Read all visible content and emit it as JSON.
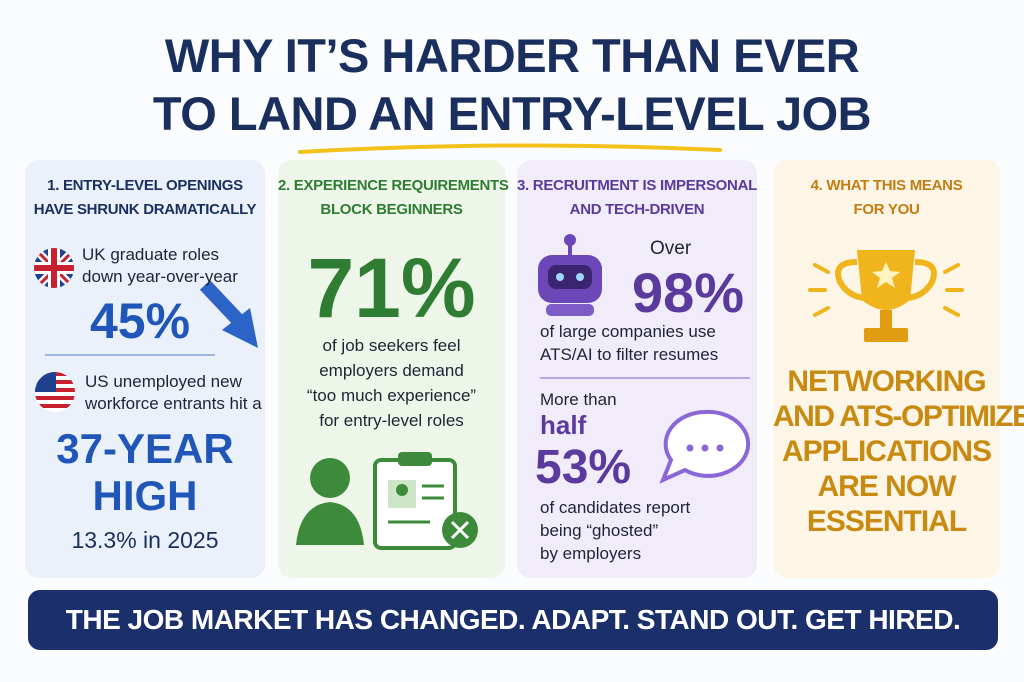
{
  "header": {
    "title_lines": [
      "WHY IT’S HARDER THAN EVER",
      "TO LAND AN ENTRY-LEVEL JOB"
    ]
  },
  "panels": [
    {
      "heading_lines": [
        "1. ENTRY-LEVEL OPENINGS",
        "HAVE SHRUNK DRAMATICALLY"
      ],
      "uk_text_lines": [
        "UK graduate roles",
        "down year-over-year"
      ],
      "uk_stat": "45%",
      "us_text_lines": [
        "US unemployed new",
        "workforce entrants hit a"
      ],
      "us_stat_lines": [
        "37-YEAR",
        "HIGH"
      ],
      "us_note": "13.3% in 2025"
    },
    {
      "heading_lines": [
        "2. EXPERIENCE REQUIREMENTS",
        "BLOCK BEGINNERS"
      ],
      "stat": "71%",
      "text_lines": [
        "of job seekers feel",
        "employers demand",
        "“too much experience”",
        "for entry-level roles"
      ]
    },
    {
      "heading_lines": [
        "3. RECRUITMENT IS IMPERSONAL",
        "AND TECH-DRIVEN"
      ],
      "stat1_prefix": "Over",
      "stat1": "98%",
      "stat1_text_lines": [
        "of large companies use",
        "ATS/AI to filter resumes"
      ],
      "stat2_prefix_lines": [
        "More than",
        "half"
      ],
      "stat2": "53%",
      "stat2_text_lines": [
        "of candidates report",
        "being “ghosted”",
        "by employers"
      ]
    },
    {
      "heading_lines": [
        "4. WHAT THIS MEANS",
        "FOR YOU"
      ],
      "message_lines": [
        "NETWORKING",
        "AND ATS-OPTIMIZED",
        "APPLICATIONS",
        "ARE NOW",
        "ESSENTIAL"
      ]
    }
  ],
  "footer": {
    "banner": "THE JOB MARKET HAS CHANGED. ADAPT. STAND OUT. GET HIRED."
  }
}
